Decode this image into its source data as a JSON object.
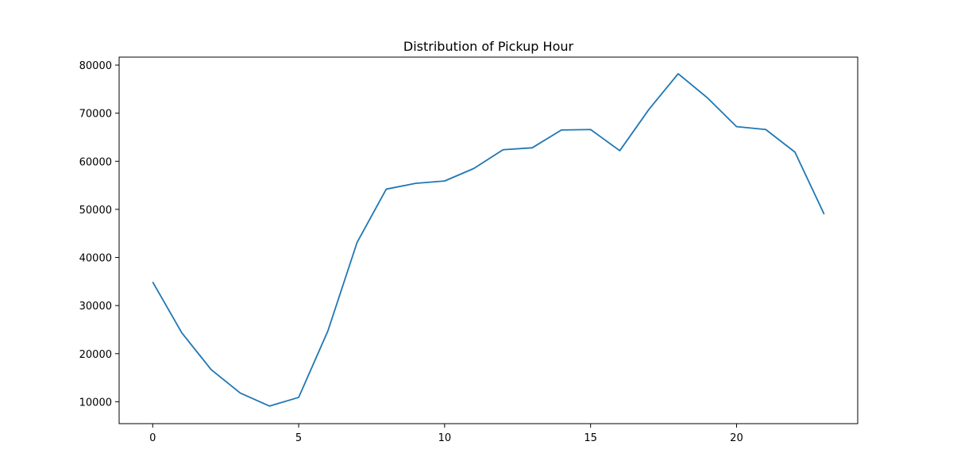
{
  "chart_data": {
    "type": "line",
    "title": "Distribution of Pickup Hour",
    "xlabel": "",
    "ylabel": "",
    "x": [
      0,
      1,
      2,
      3,
      4,
      5,
      6,
      7,
      8,
      9,
      10,
      11,
      12,
      13,
      14,
      15,
      16,
      17,
      18,
      19,
      20,
      21,
      22,
      23
    ],
    "series": [
      {
        "values": [
          34900,
          24300,
          16700,
          11800,
          9100,
          10900,
          24700,
          43100,
          54200,
          55400,
          55900,
          58500,
          62400,
          62800,
          66500,
          66600,
          62200,
          70800,
          78200,
          73200,
          67200,
          66600,
          61900,
          49000
        ],
        "color": "#1f77b4"
      }
    ],
    "xlim": [
      -1.15,
      24.15
    ],
    "ylim": [
      5445,
      81655
    ],
    "xticks": [
      0,
      5,
      10,
      15,
      20
    ],
    "yticks": [
      10000,
      20000,
      30000,
      40000,
      50000,
      60000,
      70000,
      80000
    ],
    "grid": false,
    "legend": "none"
  }
}
